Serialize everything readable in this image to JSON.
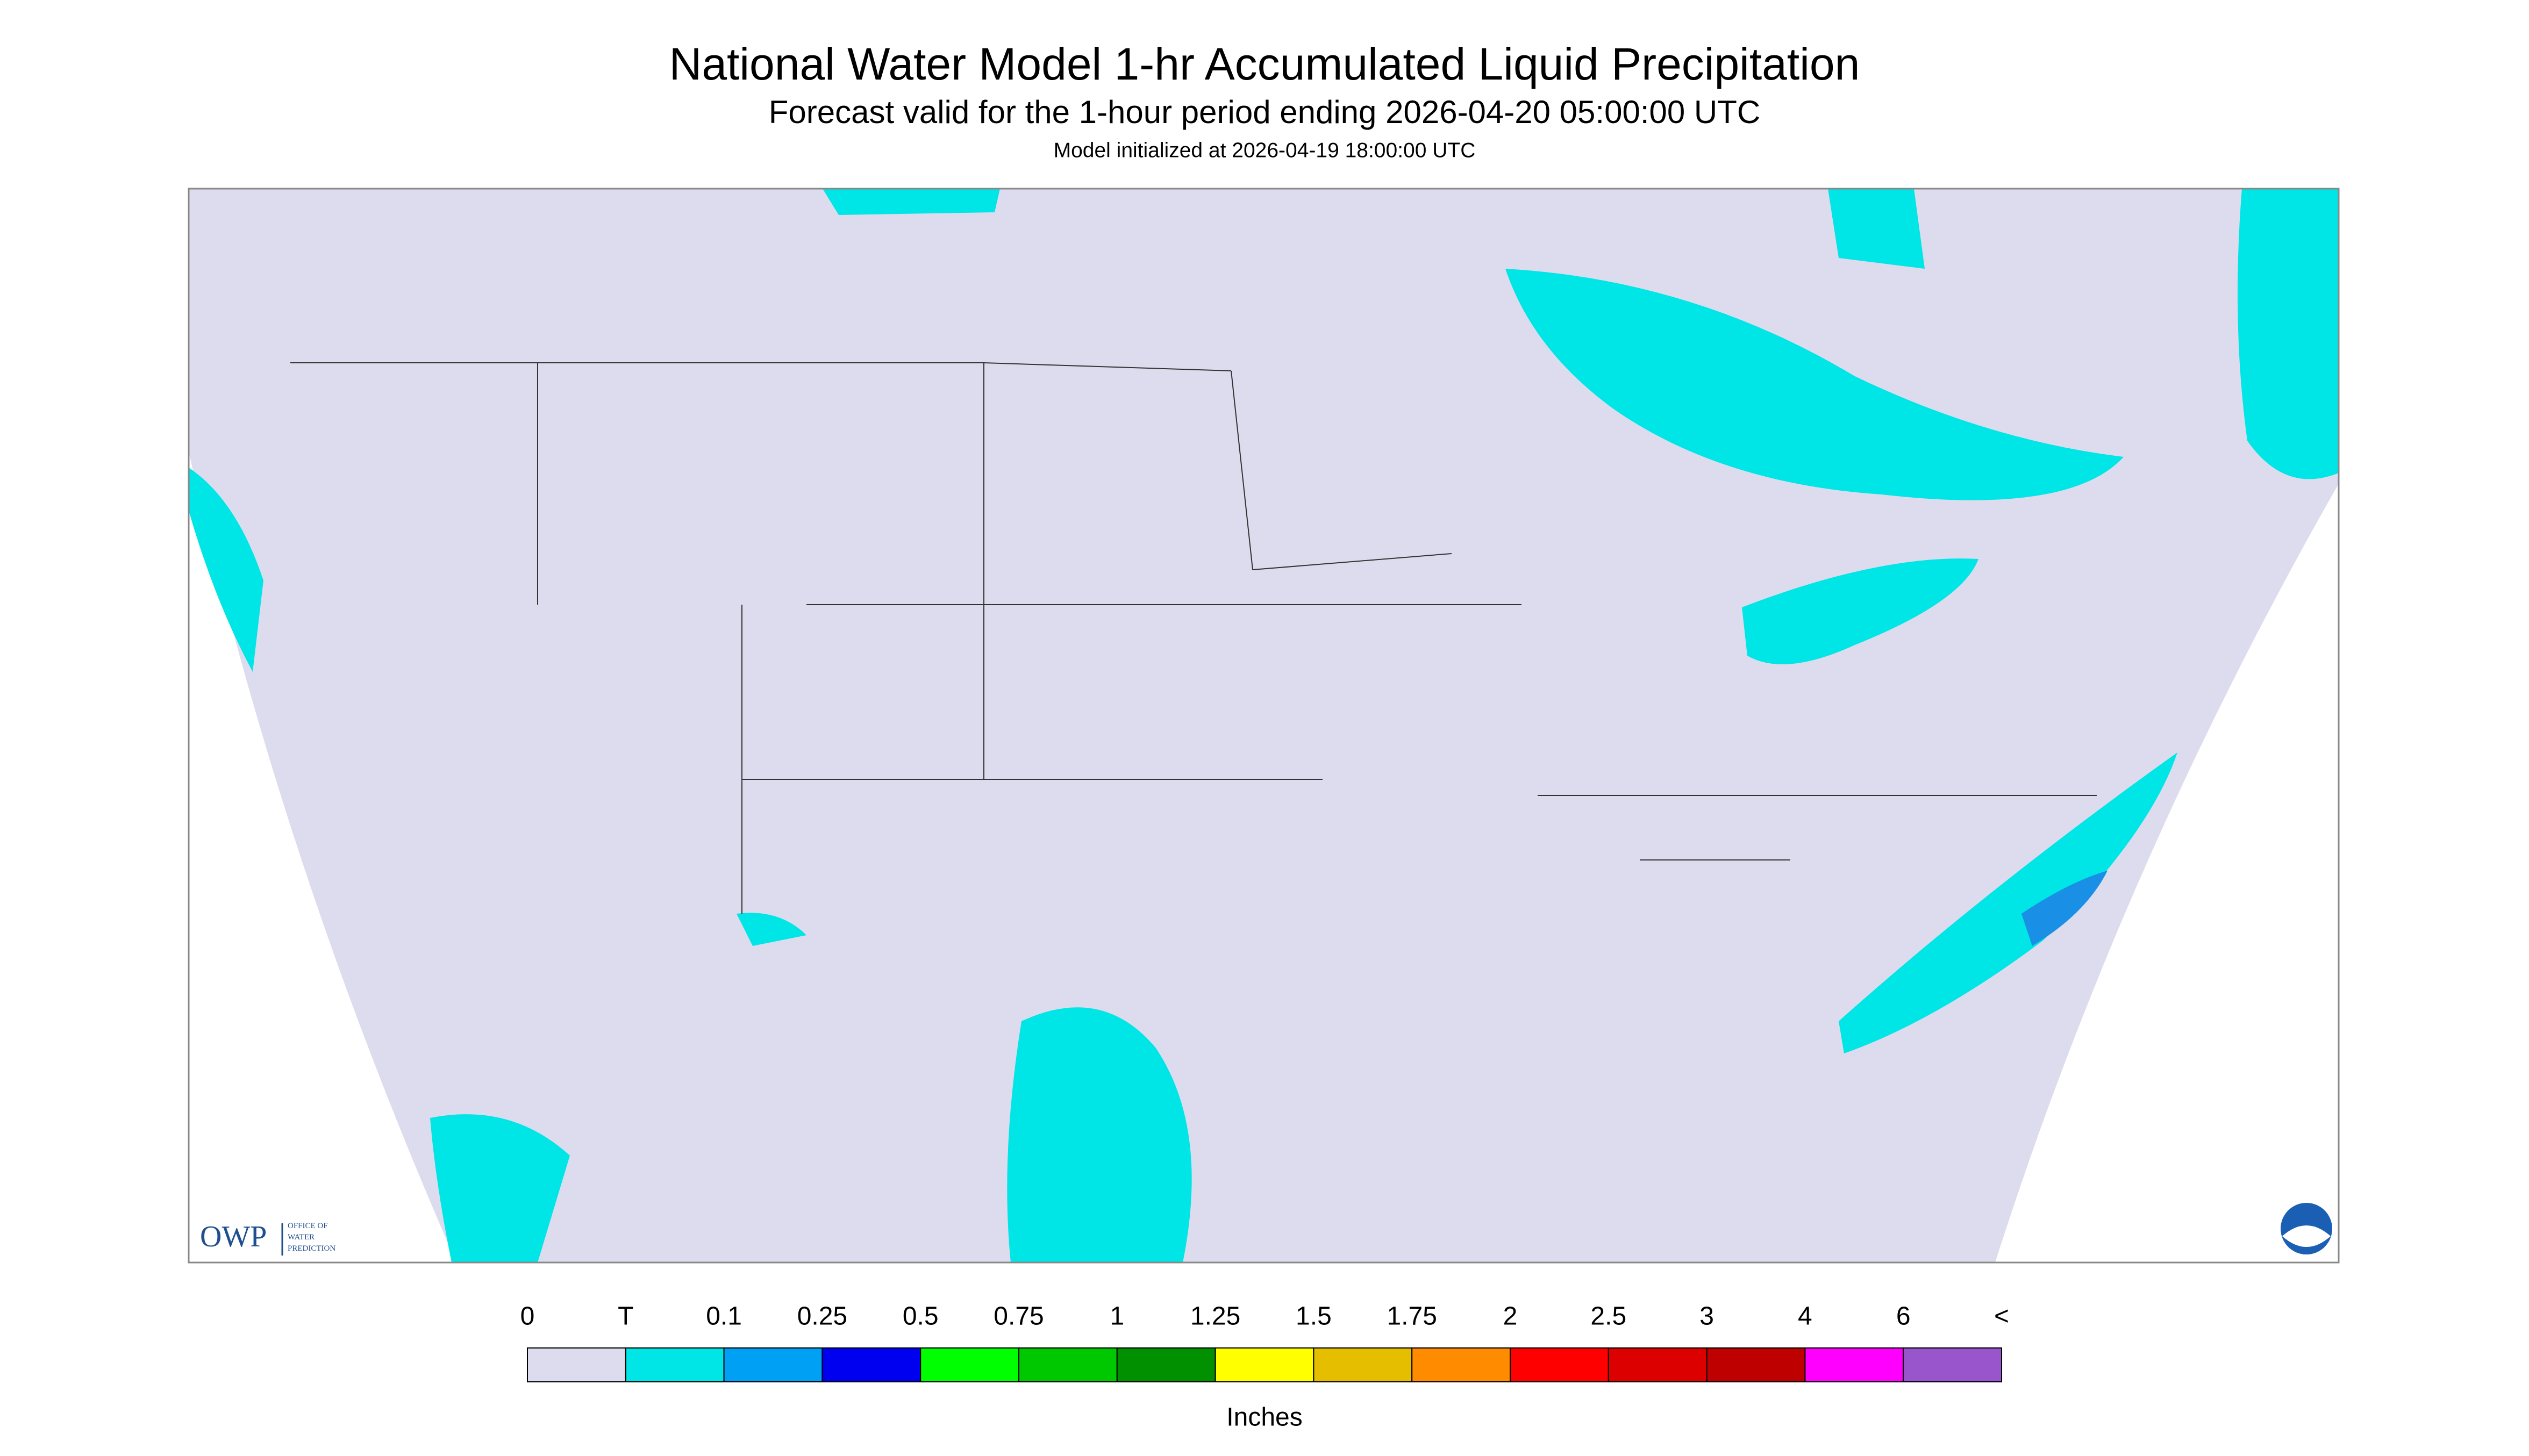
{
  "header": {
    "title": "National Water Model 1-hr Accumulated Liquid Precipitation",
    "subtitle": "Forecast valid for the 1-hour period ending 2026-04-20 05:00:00 UTC",
    "initialized": "Model initialized at 2026-04-19 18:00:00 UTC"
  },
  "logo": {
    "abbr": "OWP",
    "lines": [
      "OFFICE OF",
      "WATER",
      "PREDICTION"
    ]
  },
  "legend": {
    "labels": [
      "0",
      "T",
      "0.1",
      "0.25",
      "0.5",
      "0.75",
      "1",
      "1.25",
      "1.5",
      "1.75",
      "2",
      "2.5",
      "3",
      "4",
      "6",
      "<"
    ],
    "colors": [
      "#dcdcee",
      "#00e5e5",
      "#00a0f5",
      "#0000f0",
      "#00ff00",
      "#00c800",
      "#009000",
      "#ffff00",
      "#e6be00",
      "#ff8c00",
      "#ff0000",
      "#dc0000",
      "#be0000",
      "#ff00ff",
      "#9955cc"
    ],
    "units": "Inches"
  }
}
